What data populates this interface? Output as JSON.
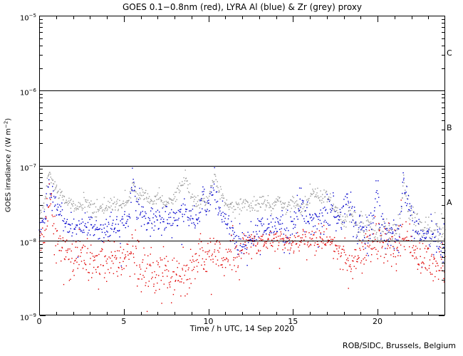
{
  "page": {
    "credit": "ROB/SIDC, Brussels, Belgium"
  },
  "chart_data": {
    "type": "scatter",
    "title": "GOES 0.1−0.8nm (red), LYRA Al (blue) & Zr (grey) proxy",
    "xlabel": "Time / h UTC, 14 Sep 2020",
    "ylabel": "GOES irradiance / (W m−2)",
    "ylabel_parts": {
      "pre": "GOES irradiance / (W m",
      "sup": "−2",
      "post": ")"
    },
    "x_range": [
      0,
      24
    ],
    "x_major_ticks": [
      0,
      5,
      10,
      15,
      20
    ],
    "x_minor_step": 1,
    "y_log_range": [
      -9,
      -5
    ],
    "y_tick_exponents": [
      -5,
      -6,
      -7,
      -8,
      -9
    ],
    "hlines_log": [
      -6,
      -7,
      -8
    ],
    "flare_class_labels": [
      {
        "label": "C",
        "log_center": -5.5
      },
      {
        "label": "B",
        "log_center": -6.5
      },
      {
        "label": "A",
        "log_center": -7.5
      }
    ],
    "grid": false,
    "legend": "encoded in title colors",
    "axis_color": "#000000",
    "seed": 20200914,
    "series": [
      {
        "name": "LYRA Zr proxy",
        "color": "#9a9a9a",
        "marker_px": 1.4,
        "points_per_hour": 34,
        "outlier_prob": 0.01,
        "outlier_mag": 0.35,
        "noise": [
          [
            0,
            0.05
          ],
          [
            17,
            0.05
          ],
          [
            19,
            0.09
          ],
          [
            24,
            0.1
          ]
        ],
        "trend": [
          [
            0,
            -7.66
          ],
          [
            0.3,
            -7.5
          ],
          [
            0.55,
            -7.1
          ],
          [
            0.8,
            -7.22
          ],
          [
            1.1,
            -7.35
          ],
          [
            1.6,
            -7.48
          ],
          [
            2.2,
            -7.56
          ],
          [
            2.8,
            -7.5
          ],
          [
            3.3,
            -7.6
          ],
          [
            3.9,
            -7.56
          ],
          [
            4.4,
            -7.5
          ],
          [
            4.9,
            -7.54
          ],
          [
            5.3,
            -7.45
          ],
          [
            5.55,
            -7.2
          ],
          [
            5.8,
            -7.42
          ],
          [
            6.3,
            -7.35
          ],
          [
            6.7,
            -7.48
          ],
          [
            7.1,
            -7.38
          ],
          [
            7.5,
            -7.5
          ],
          [
            7.9,
            -7.45
          ],
          [
            8.3,
            -7.35
          ],
          [
            8.6,
            -7.15
          ],
          [
            8.9,
            -7.35
          ],
          [
            9.3,
            -7.48
          ],
          [
            9.7,
            -7.42
          ],
          [
            10.0,
            -7.48
          ],
          [
            10.35,
            -7.14
          ],
          [
            10.7,
            -7.35
          ],
          [
            11.2,
            -7.52
          ],
          [
            11.7,
            -7.55
          ],
          [
            12.2,
            -7.5
          ],
          [
            12.7,
            -7.55
          ],
          [
            13.2,
            -7.48
          ],
          [
            13.7,
            -7.55
          ],
          [
            14.2,
            -7.45
          ],
          [
            14.6,
            -7.55
          ],
          [
            15.0,
            -7.48
          ],
          [
            15.4,
            -7.58
          ],
          [
            15.8,
            -7.5
          ],
          [
            16.2,
            -7.35
          ],
          [
            16.6,
            -7.45
          ],
          [
            17.0,
            -7.4
          ],
          [
            17.5,
            -7.6
          ],
          [
            18.0,
            -7.75
          ],
          [
            18.4,
            -7.65
          ],
          [
            18.9,
            -7.85
          ],
          [
            19.4,
            -7.8
          ],
          [
            19.9,
            -7.9
          ],
          [
            20.4,
            -7.85
          ],
          [
            20.9,
            -7.95
          ],
          [
            21.3,
            -7.85
          ],
          [
            21.55,
            -7.12
          ],
          [
            21.85,
            -7.6
          ],
          [
            22.3,
            -7.8
          ],
          [
            22.7,
            -7.85
          ],
          [
            23.1,
            -7.9
          ],
          [
            23.5,
            -7.85
          ],
          [
            24,
            -7.95
          ]
        ]
      },
      {
        "name": "LYRA Al proxy",
        "color": "#0000cc",
        "marker_px": 1.4,
        "points_per_hour": 36,
        "outlier_prob": 0.012,
        "outlier_mag": 0.45,
        "noise": [
          [
            0,
            0.08
          ],
          [
            12,
            0.1
          ],
          [
            17,
            0.12
          ],
          [
            24,
            0.12
          ]
        ],
        "trend": [
          [
            0,
            -7.88
          ],
          [
            0.35,
            -7.7
          ],
          [
            0.58,
            -7.26
          ],
          [
            0.8,
            -7.45
          ],
          [
            1.1,
            -7.6
          ],
          [
            1.6,
            -7.78
          ],
          [
            2.2,
            -7.85
          ],
          [
            3.0,
            -7.8
          ],
          [
            3.6,
            -7.88
          ],
          [
            4.2,
            -7.82
          ],
          [
            4.8,
            -7.85
          ],
          [
            5.3,
            -7.7
          ],
          [
            5.55,
            -7.15
          ],
          [
            5.75,
            -7.55
          ],
          [
            6.2,
            -7.7
          ],
          [
            6.8,
            -7.75
          ],
          [
            7.4,
            -7.7
          ],
          [
            8.0,
            -7.75
          ],
          [
            8.6,
            -7.55
          ],
          [
            8.9,
            -7.7
          ],
          [
            9.4,
            -7.75
          ],
          [
            9.7,
            -7.4
          ],
          [
            9.9,
            -7.65
          ],
          [
            10.35,
            -7.3
          ],
          [
            10.7,
            -7.6
          ],
          [
            11.2,
            -7.8
          ],
          [
            11.7,
            -8.0
          ],
          [
            12.2,
            -8.05
          ],
          [
            12.7,
            -7.9
          ],
          [
            13.2,
            -7.8
          ],
          [
            13.7,
            -7.85
          ],
          [
            14.2,
            -7.75
          ],
          [
            14.7,
            -7.9
          ],
          [
            15.2,
            -7.7
          ],
          [
            15.5,
            -7.45
          ],
          [
            15.8,
            -7.75
          ],
          [
            16.3,
            -7.8
          ],
          [
            16.8,
            -7.7
          ],
          [
            17.3,
            -7.55
          ],
          [
            17.8,
            -7.8
          ],
          [
            18.3,
            -7.45
          ],
          [
            18.6,
            -7.75
          ],
          [
            19.1,
            -7.85
          ],
          [
            19.6,
            -7.9
          ],
          [
            19.95,
            -7.38
          ],
          [
            20.2,
            -7.75
          ],
          [
            20.6,
            -7.9
          ],
          [
            21.0,
            -7.95
          ],
          [
            21.3,
            -7.85
          ],
          [
            21.55,
            -7.18
          ],
          [
            21.8,
            -7.55
          ],
          [
            22.2,
            -7.85
          ],
          [
            22.6,
            -7.95
          ],
          [
            23.0,
            -7.9
          ],
          [
            23.4,
            -8.0
          ],
          [
            23.8,
            -8.1
          ],
          [
            24,
            -8.2
          ]
        ]
      },
      {
        "name": "GOES 0.1-0.8nm",
        "color": "#e00000",
        "marker_px": 1.4,
        "points_per_hour": 36,
        "outlier_prob": 0.02,
        "outlier_mag": 0.55,
        "noise": [
          [
            0,
            0.12
          ],
          [
            1.2,
            0.15
          ],
          [
            11.9,
            0.15
          ],
          [
            12.1,
            0.07
          ],
          [
            17.5,
            0.08
          ],
          [
            19,
            0.12
          ],
          [
            24,
            0.15
          ]
        ],
        "trend": [
          [
            0,
            -7.95
          ],
          [
            0.3,
            -7.9
          ],
          [
            0.5,
            -7.65
          ],
          [
            0.62,
            -7.48
          ],
          [
            0.8,
            -7.75
          ],
          [
            1.0,
            -7.95
          ],
          [
            1.3,
            -8.15
          ],
          [
            1.8,
            -8.25
          ],
          [
            2.5,
            -8.2
          ],
          [
            3.2,
            -8.3
          ],
          [
            3.8,
            -8.25
          ],
          [
            4.4,
            -8.3
          ],
          [
            5.0,
            -8.25
          ],
          [
            5.5,
            -8.1
          ],
          [
            5.7,
            -8.2
          ],
          [
            6.2,
            -8.35
          ],
          [
            6.7,
            -8.45
          ],
          [
            7.2,
            -8.4
          ],
          [
            7.7,
            -8.5
          ],
          [
            8.2,
            -8.45
          ],
          [
            8.7,
            -8.4
          ],
          [
            9.2,
            -8.3
          ],
          [
            9.7,
            -8.25
          ],
          [
            10.2,
            -8.2
          ],
          [
            10.4,
            -8.05
          ],
          [
            10.7,
            -8.2
          ],
          [
            11.2,
            -8.25
          ],
          [
            11.7,
            -8.15
          ],
          [
            12.0,
            -8.02
          ],
          [
            12.5,
            -8.0
          ],
          [
            13.0,
            -8.05
          ],
          [
            13.5,
            -8.0
          ],
          [
            14.0,
            -8.02
          ],
          [
            14.5,
            -8.0
          ],
          [
            15.0,
            -8.05
          ],
          [
            15.5,
            -7.95
          ],
          [
            16.0,
            -8.0
          ],
          [
            16.5,
            -7.95
          ],
          [
            17.0,
            -8.0
          ],
          [
            17.5,
            -8.05
          ],
          [
            18.0,
            -8.2
          ],
          [
            18.5,
            -8.3
          ],
          [
            19.0,
            -8.15
          ],
          [
            19.5,
            -8.05
          ],
          [
            20.0,
            -8.0
          ],
          [
            20.5,
            -8.05
          ],
          [
            21.0,
            -8.1
          ],
          [
            21.5,
            -7.95
          ],
          [
            21.8,
            -8.05
          ],
          [
            22.2,
            -8.15
          ],
          [
            22.6,
            -8.25
          ],
          [
            23.0,
            -8.2
          ],
          [
            23.4,
            -8.35
          ],
          [
            23.8,
            -8.3
          ],
          [
            24,
            -8.4
          ]
        ]
      }
    ]
  }
}
